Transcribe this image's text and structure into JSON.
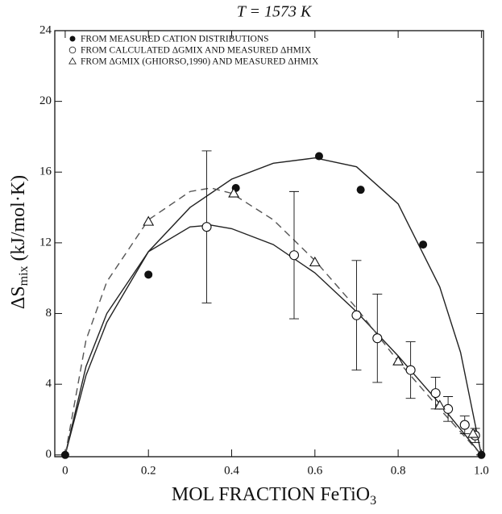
{
  "chart_data": {
    "type": "scatter",
    "title": "T = 1573 K",
    "ylabel": "ΔS",
    "ylabel_sub": "mix",
    "ylabel_unit": "(kJ/mol·K)",
    "xlabel": "MOL FRACTION FeTiO",
    "xlabel_sub": "3",
    "xlim": [
      -0.025,
      1.005
    ],
    "ylim": [
      -0.1,
      24
    ],
    "xticks": [
      0,
      0.2,
      0.4,
      0.6,
      0.8,
      {
        "value": 1,
        "label": "1.0"
      }
    ],
    "yticks": [
      0,
      4,
      8,
      12,
      16,
      20,
      24
    ],
    "series": [
      {
        "name": "FROM MEASURED CATION DISTRIBUTIONS",
        "color": "#111",
        "marker": "filled-circle",
        "x": [
          0,
          0.2,
          0.41,
          0.61,
          0.71,
          0.86,
          1.0
        ],
        "values": [
          0,
          10.2,
          15.1,
          16.9,
          15.0,
          11.9,
          0
        ]
      },
      {
        "name": "FROM CALCULATED ΔGMIX AND MEASURED ΔHMIX",
        "color": "#111",
        "marker": "open-circle",
        "x": [
          0.34,
          0.55,
          0.7,
          0.75,
          0.83,
          0.89,
          0.92,
          0.96,
          0.985
        ],
        "values": [
          12.9,
          11.3,
          7.9,
          6.6,
          4.8,
          3.5,
          2.6,
          1.7,
          1.1
        ],
        "errors": [
          4.3,
          3.6,
          3.1,
          2.5,
          1.6,
          0.9,
          0.7,
          0.5,
          0.4
        ]
      },
      {
        "name": "FROM ΔGMIX (GHIORSO,1990) AND MEASURED ΔHMIX",
        "color": "#111",
        "marker": "triangle",
        "x": [
          0.2,
          0.405,
          0.6,
          0.8,
          0.9,
          0.98
        ],
        "values": [
          13.2,
          14.8,
          10.9,
          5.3,
          2.8,
          1.2
        ]
      },
      {
        "color": "#222",
        "style": "solid",
        "x": [
          0,
          0.05,
          0.1,
          0.2,
          0.3,
          0.4,
          0.5,
          0.6,
          0.7,
          0.8,
          0.9,
          0.95,
          1.0
        ],
        "values": [
          0,
          4.5,
          7.5,
          11.5,
          14.0,
          15.6,
          16.5,
          16.8,
          16.3,
          14.2,
          9.5,
          5.8,
          0
        ]
      },
      {
        "color": "#222",
        "style": "solid",
        "x": [
          0,
          0.05,
          0.1,
          0.2,
          0.3,
          0.35,
          0.4,
          0.5,
          0.6,
          0.7,
          0.8,
          0.9,
          1.0
        ],
        "values": [
          0,
          5.0,
          8.0,
          11.5,
          12.9,
          13.0,
          12.8,
          11.9,
          10.3,
          8.1,
          5.6,
          2.9,
          0
        ]
      },
      {
        "color": "#555",
        "style": "dashed",
        "x": [
          0,
          0.05,
          0.1,
          0.2,
          0.3,
          0.35,
          0.4,
          0.5,
          0.6,
          0.7,
          0.8,
          0.9,
          1.0
        ],
        "values": [
          0,
          6.5,
          9.8,
          13.3,
          14.9,
          15.1,
          14.8,
          13.3,
          11.0,
          8.3,
          5.3,
          2.6,
          0
        ]
      }
    ]
  }
}
